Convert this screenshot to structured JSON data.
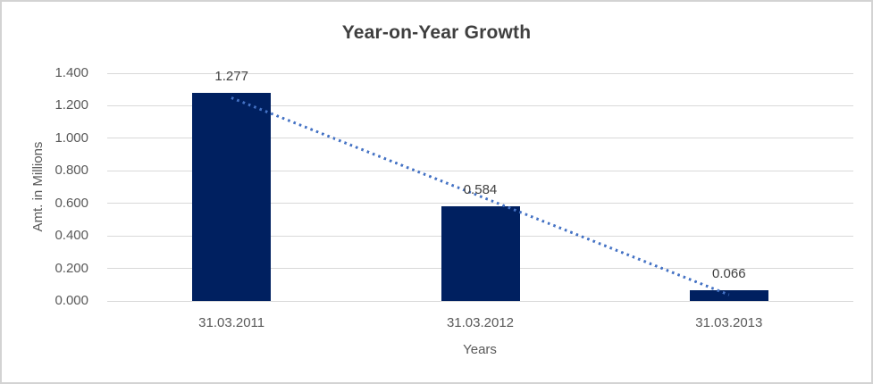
{
  "chart_data": {
    "type": "bar",
    "title": "Year-on-Year Growth",
    "categories": [
      "31.03.2011",
      "31.03.2012",
      "31.03.2013"
    ],
    "values": [
      1.277,
      0.584,
      0.066
    ],
    "value_labels": [
      "1.277",
      "0.584",
      "0.066"
    ],
    "xlabel": "Years",
    "ylabel": "Amt. in Millions",
    "ylim": [
      0,
      1.4
    ],
    "ytick_step": 0.2,
    "ytick_labels": [
      "0.000",
      "0.200",
      "0.400",
      "0.600",
      "0.800",
      "1.000",
      "1.200",
      "1.400"
    ],
    "grid": true,
    "legend": "none",
    "trendline": {
      "type": "linear",
      "style": "dotted"
    },
    "colors": {
      "bar": "#002060",
      "trendline": "#4472c4",
      "gridline": "#d9d9d9",
      "title_text": "#3f3f3f",
      "axis_text": "#595959",
      "data_label_text": "#404040",
      "background": "#ffffff",
      "frame_border": "#d3d3d3"
    }
  }
}
